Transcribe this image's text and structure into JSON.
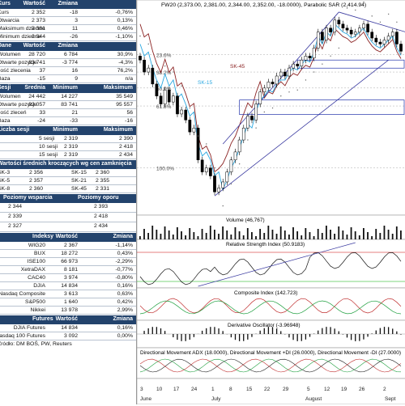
{
  "table": {
    "kurs_header": [
      "Kurs",
      "Wartość",
      "Zmiana",
      ""
    ],
    "kurs_rows": [
      [
        "Kurs",
        "2 352",
        "-18",
        "-0,76%"
      ],
      [
        "Otwarcia",
        "2 373",
        "3",
        "0,13%"
      ],
      [
        "Maksimum dzienne",
        "2 381",
        "11",
        "0,46%"
      ],
      [
        "Minimum dzienne",
        "2 344",
        "-26",
        "-1,10%"
      ]
    ],
    "dane_header": [
      "Dane",
      "Wartość",
      "Zmiana",
      ""
    ],
    "dane_rows": [
      [
        "Wolumen",
        "28 720",
        "6 784",
        "30,9%"
      ],
      [
        "Otwarte pozycje",
        "83 741",
        "-3 774",
        "-4,3%"
      ],
      [
        "Ilość zlecenia",
        "37",
        "16",
        "76,2%"
      ],
      [
        "Baza",
        "-15",
        "9",
        "n/a"
      ]
    ],
    "sesji_header": [
      "Sesji",
      "Średnia",
      "Minimum",
      "Maksimum"
    ],
    "sesji_rows": [
      [
        "Wolumen",
        "24 442",
        "14 227",
        "35 549"
      ],
      [
        "Otwarte pozycje",
        "92 057",
        "83 741",
        "95 557"
      ],
      [
        "Ilość zleceń",
        "33",
        "21",
        "56"
      ],
      [
        "Baza",
        "-24",
        "-33",
        "-16"
      ]
    ],
    "liczba_header": [
      "Liczba sesji",
      "Minimum",
      "Maksimum"
    ],
    "liczba_rows": [
      [
        "5 sesji",
        "2 319",
        "2 390"
      ],
      [
        "10 sesji",
        "2 319",
        "2 418"
      ],
      [
        "15 sesji",
        "2 319",
        "2 434"
      ]
    ],
    "sma_header": "Wartości średnich kroczących wg cen zamknięcia",
    "sma_rows": [
      [
        "SK-3",
        "2 356",
        "SK-15",
        "2 360"
      ],
      [
        "SK-5",
        "2 357",
        "SK-21",
        "2 355"
      ],
      [
        "SK-8",
        "2 360",
        "SK-45",
        "2 331"
      ]
    ],
    "wsparcia_header": [
      "Poziomy wsparcia",
      "Poziomy oporu"
    ],
    "wsparcia_rows": [
      [
        "2 344",
        "2 393"
      ],
      [
        "2 339",
        "2 418"
      ],
      [
        "2 327",
        "2 434"
      ]
    ],
    "indeksy_header": [
      "Indeksy",
      "Wartość",
      "Zmiana"
    ],
    "indeksy_rows": [
      [
        "WIG20",
        "2 367",
        "-1,14%"
      ],
      [
        "BUX",
        "18 272",
        "0,43%"
      ],
      [
        "ISE100",
        "66 973",
        "-2,29%"
      ],
      [
        "XetraDAX",
        "8 181",
        "-0,77%"
      ],
      [
        "CAC40",
        "3 974",
        "-0,80%"
      ],
      [
        "DJIA",
        "14 834",
        "0,16%"
      ],
      [
        "Nasdaq Composite",
        "3 613",
        "0,63%"
      ],
      [
        "S&P500",
        "1 640",
        "0,42%"
      ],
      [
        "Nikkei",
        "13 978",
        "2,99%"
      ]
    ],
    "futures_header": [
      "Futures",
      "Wartość",
      "Zmiana"
    ],
    "futures_rows": [
      [
        "DJIA Futures",
        "14 834",
        "0,16%"
      ],
      [
        "Nasdaq 100 Futures",
        "3 092",
        "0,00%"
      ]
    ],
    "source": "Źródło: DM BOŚ, PW, Reuters"
  },
  "chart_data": {
    "type": "line",
    "title": "FW20 (2,373.00, 2,381.00, 2,344.00, 2,352.00, -18.0000), Parabolic SAR (2,414.94)",
    "fib_labels": [
      "23.6%",
      "38.2%",
      "50.0%",
      "61.8%",
      "100.0%"
    ],
    "ma_labels": [
      "SK-45",
      "SK-15"
    ],
    "panels": [
      "Volume (46,767)",
      "Relative Strength Index (50.9183)",
      "Composite Index (142.723)",
      "Derivative Oscillator (-3.96948)",
      "Directional Movement ADX (18.0000), Directional Movement +DI (26.0000), Directional Movement -DI (27.0000)"
    ],
    "x_ticks": [
      "3",
      "10",
      "17",
      "24",
      "1",
      "8",
      "15",
      "22",
      "29",
      "5",
      "12",
      "19",
      "26",
      "2"
    ],
    "months": [
      "June",
      "July",
      "August",
      "Sept"
    ],
    "close": [
      2330,
      2300,
      2310,
      2270,
      2240,
      2220,
      2255,
      2225,
      2240,
      2195,
      2205,
      2180,
      2150,
      2160,
      2080,
      2050,
      2060,
      2040,
      2000,
      2010,
      2025,
      2050,
      2080,
      2100,
      2130,
      2160,
      2190,
      2180,
      2220,
      2250,
      2260,
      2275,
      2270,
      2290,
      2300,
      2290,
      2310,
      2320,
      2315,
      2330,
      2340,
      2335,
      2360,
      2400,
      2380,
      2410,
      2400,
      2430,
      2420,
      2410,
      2405,
      2395,
      2400,
      2410,
      2420,
      2400,
      2385,
      2375,
      2370,
      2380,
      2390,
      2400,
      2370,
      2352
    ],
    "colors": {
      "header": "#23436c",
      "price": "#000000",
      "ma15": "#2aa7e0",
      "ma45": "#8b2323",
      "trend": "#3a3aa0",
      "rsi": "#111111"
    }
  }
}
